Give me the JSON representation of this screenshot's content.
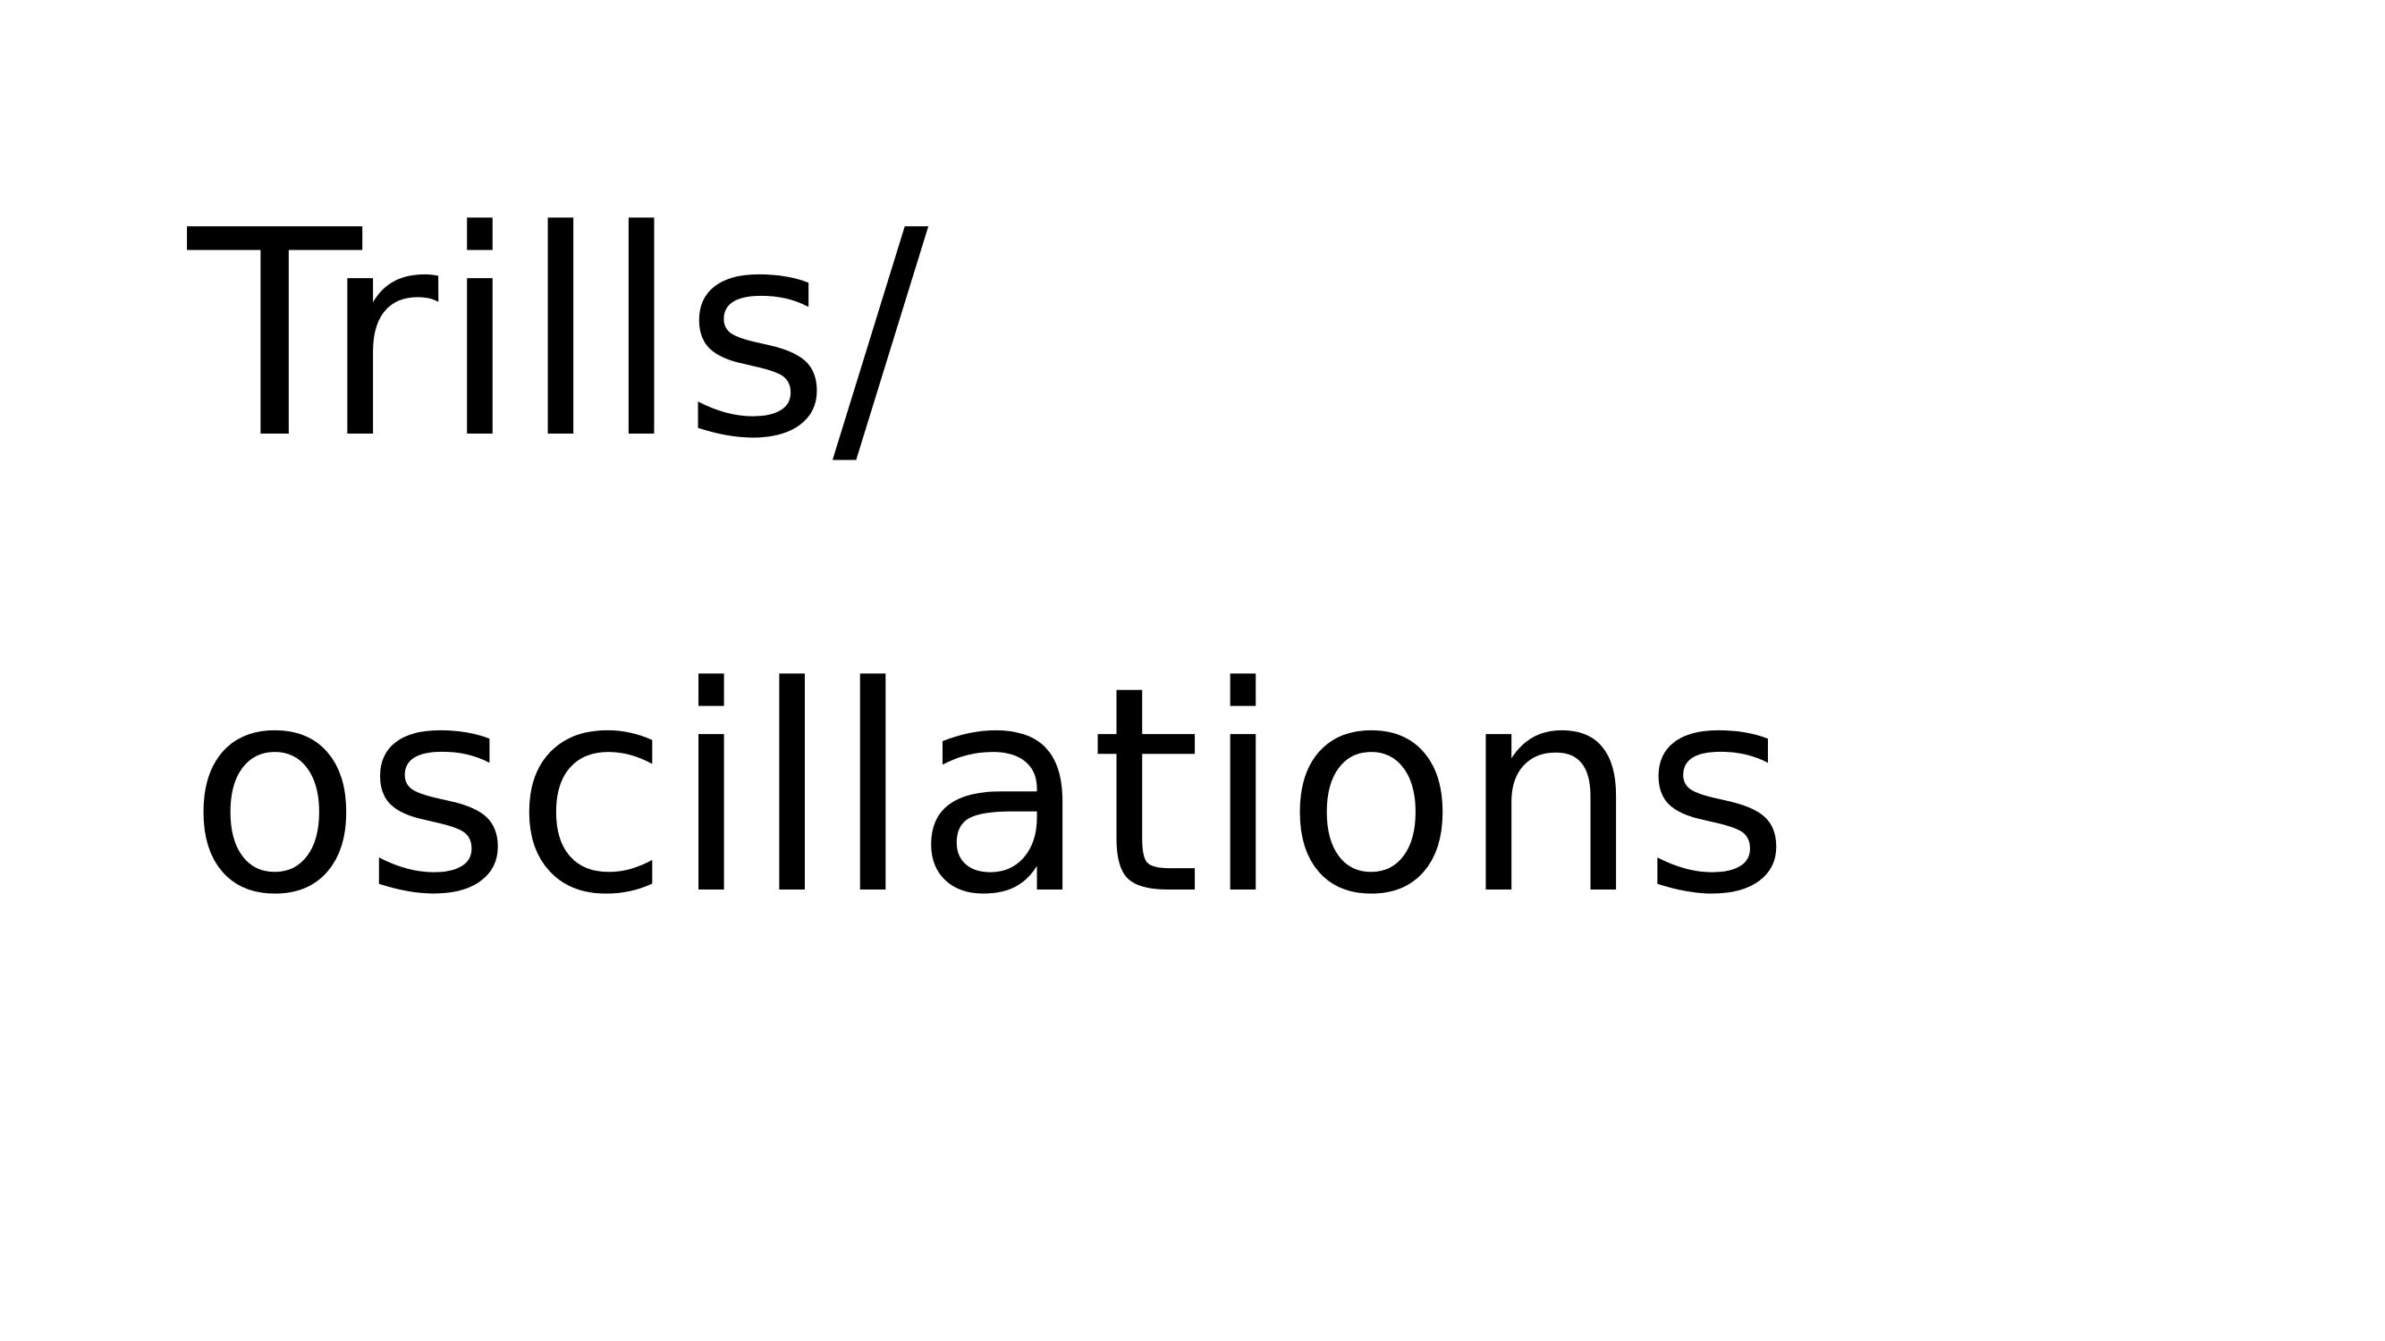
{
  "slide": {
    "title_line_1": "Trills/",
    "title_line_2": "oscillations"
  }
}
